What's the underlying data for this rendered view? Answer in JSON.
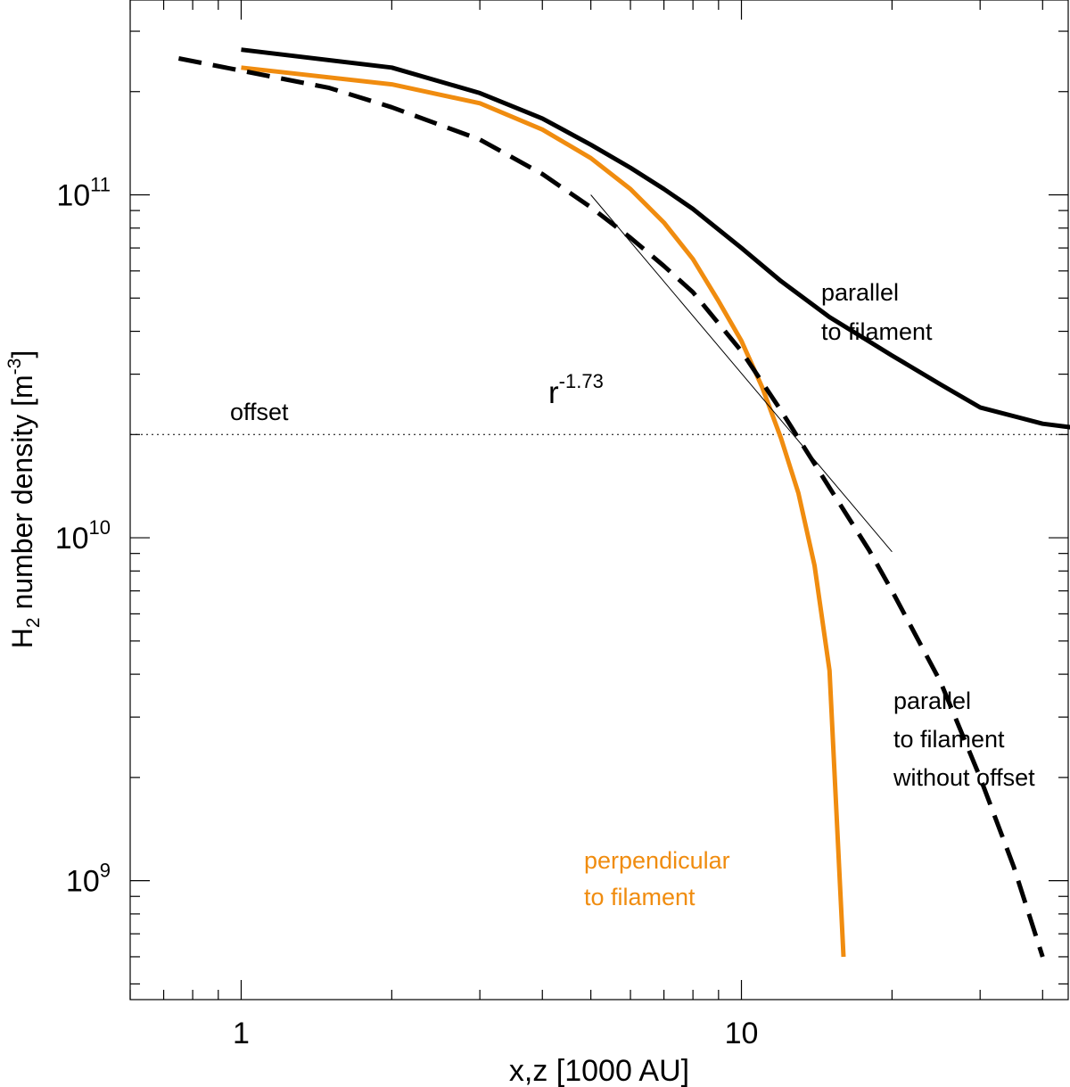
{
  "chart_data": {
    "type": "line",
    "xlabel": "x,z [1000 AU]",
    "ylabel_main": "H",
    "ylabel_sub": "2",
    "ylabel_rest": " number density [m",
    "ylabel_sup": "-3",
    "ylabel_end": "]",
    "x_scale": "log",
    "y_scale": "log",
    "xlim": [
      0.6,
      45
    ],
    "ylim": [
      450000000.0,
      370000000000.0
    ],
    "x_ticks": [
      {
        "value": 1,
        "label": "1"
      },
      {
        "value": 10,
        "label": "10"
      }
    ],
    "y_ticks": [
      {
        "value": 1000000000.0,
        "base": "10",
        "exp": "9"
      },
      {
        "value": 10000000000.0,
        "base": "10",
        "exp": "10"
      },
      {
        "value": 100000000000.0,
        "base": "10",
        "exp": "11"
      }
    ],
    "series": [
      {
        "key": "parallel",
        "color": "#000000",
        "style": "solid",
        "x": [
          1,
          2,
          3,
          4,
          5,
          6,
          7,
          8,
          10,
          12,
          15,
          20,
          25,
          30,
          40,
          52
        ],
        "y": [
          265000000000.0,
          235000000000.0,
          198000000000.0,
          167000000000.0,
          140000000000.0,
          120000000000.0,
          104000000000.0,
          91000000000.0,
          70000000000.0,
          56000000000.0,
          44000000000.0,
          34000000000.0,
          28000000000.0,
          24000000000.0,
          21500000000.0,
          20500000000.0
        ]
      },
      {
        "key": "perpendicular",
        "color": "#f08c0f",
        "style": "solid",
        "x": [
          1,
          2,
          3,
          4,
          5,
          6,
          7,
          8,
          9,
          10,
          11,
          12,
          13,
          14,
          15,
          16
        ],
        "y": [
          235000000000.0,
          210000000000.0,
          185000000000.0,
          155000000000.0,
          128000000000.0,
          104000000000.0,
          83000000000.0,
          65000000000.0,
          49000000000.0,
          37500000000.0,
          27500000000.0,
          19500000000.0,
          13500000000.0,
          8300000000.0,
          4100000000.0,
          600000000.0
        ]
      },
      {
        "key": "without-offset",
        "color": "#000000",
        "style": "dashed",
        "x": [
          0.75,
          1.5,
          2,
          3,
          4,
          5,
          6,
          7,
          8,
          10,
          12,
          15,
          18,
          20,
          25,
          30,
          35,
          40
        ],
        "y": [
          250000000000.0,
          205000000000.0,
          180000000000.0,
          145000000000.0,
          115000000000.0,
          92000000000.0,
          75000000000.0,
          62000000000.0,
          52000000000.0,
          35000000000.0,
          23500000000.0,
          14000000000.0,
          9200000000.0,
          7000000000.0,
          3800000000.0,
          2000000000.0,
          1100000000.0,
          600000000.0
        ]
      },
      {
        "key": "power-law-fit",
        "color": "#000000",
        "style": "thin",
        "x": [
          5,
          20
        ],
        "y": [
          100000000000.0,
          9100000000.0
        ]
      }
    ],
    "offset_level": 20000000000.0,
    "annotations": {
      "offset": "offset",
      "power_base": "r",
      "power_exp": "-1.73",
      "parallel_line1": "parallel",
      "parallel_line2": "to filament",
      "nooffset_line1": "parallel",
      "nooffset_line2": "to filament",
      "nooffset_line3": "without offset",
      "perp_line1": "perpendicular",
      "perp_line2": "to filament"
    }
  }
}
